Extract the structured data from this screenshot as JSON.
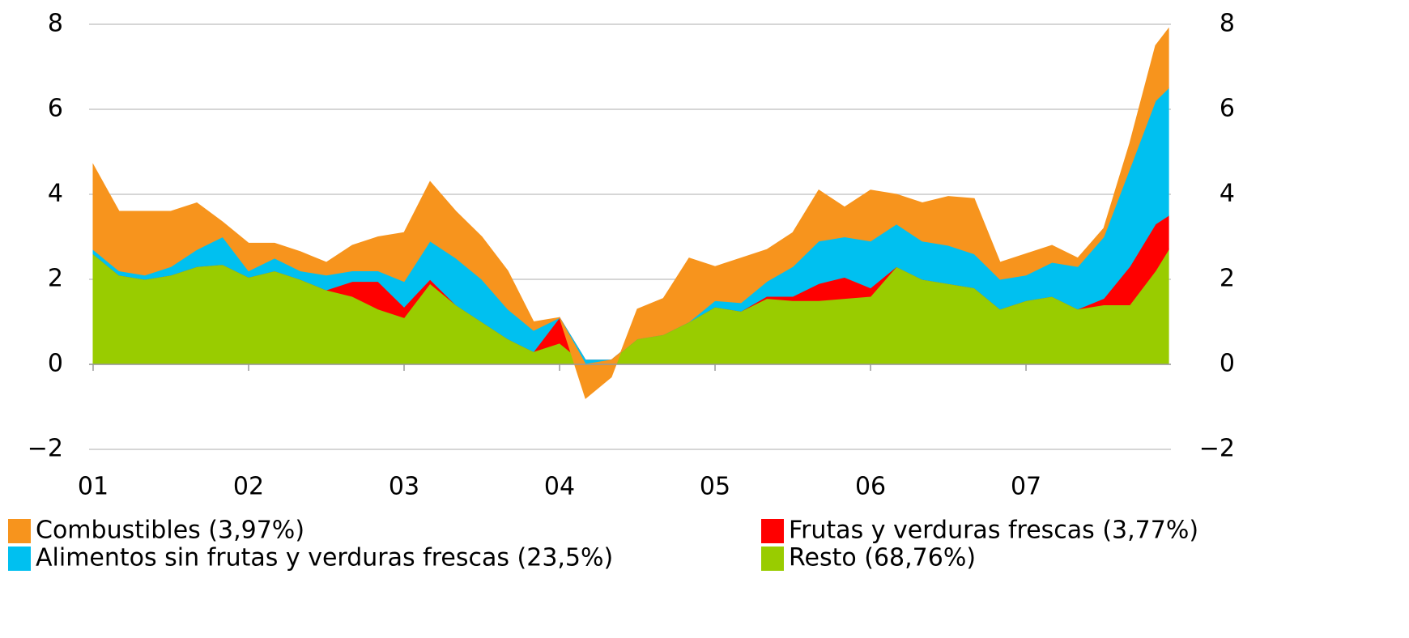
{
  "chart_data": {
    "type": "stacked_area",
    "x": [
      1,
      1.167,
      1.333,
      1.5,
      1.667,
      1.833,
      2,
      2.167,
      2.333,
      2.5,
      2.667,
      2.833,
      3,
      3.167,
      3.333,
      3.5,
      3.667,
      3.833,
      4,
      4.167,
      4.333,
      4.5,
      4.667,
      4.833,
      5,
      5.167,
      5.333,
      5.5,
      5.667,
      5.833,
      6,
      6.167,
      6.333,
      6.5,
      6.667,
      6.833,
      7,
      7.167,
      7.333,
      7.5,
      7.667,
      7.833,
      7.917
    ],
    "series": [
      {
        "name": "Resto (68,76%)",
        "color": "#99cc00",
        "values": [
          2.6,
          2.1,
          2.0,
          2.1,
          2.3,
          2.35,
          2.05,
          2.2,
          2.0,
          1.75,
          1.6,
          1.3,
          1.1,
          1.9,
          1.4,
          1.0,
          0.6,
          0.3,
          0.5,
          0,
          0.1,
          0.6,
          0.7,
          1.0,
          1.35,
          1.25,
          1.55,
          1.5,
          1.5,
          1.55,
          1.6,
          2.3,
          2.0,
          1.9,
          1.8,
          1.3,
          1.5,
          1.6,
          1.3,
          1.4,
          1.4,
          2.2,
          2.7
        ]
      },
      {
        "name": "Frutas y verduras frescas (3,77%)",
        "color": "#ff0000",
        "values": [
          0,
          0,
          0,
          0,
          0,
          0,
          0,
          0,
          0,
          0,
          0.35,
          0.65,
          0.25,
          0.1,
          0,
          0,
          0,
          0,
          0.6,
          0.1,
          0,
          0,
          0,
          0,
          0,
          0,
          0.05,
          0.1,
          0.4,
          0.5,
          0.2,
          0,
          0,
          0,
          0,
          0,
          0,
          0,
          0,
          0.15,
          0.9,
          1.1,
          0.8
        ]
      },
      {
        "name": "Alimentos sin frutas y verduras frescas (23,5%)",
        "color": "#00c0f0",
        "values": [
          0.1,
          0.1,
          0.1,
          0.2,
          0.4,
          0.65,
          0.15,
          0.3,
          0.2,
          0.35,
          0.25,
          0.25,
          0.6,
          0.9,
          1.1,
          1.0,
          0.7,
          0.5,
          0,
          -0.1,
          0,
          0,
          0,
          0,
          0.15,
          0.2,
          0.35,
          0.7,
          1.0,
          0.95,
          1.1,
          1.0,
          0.9,
          0.9,
          0.8,
          0.7,
          0.6,
          0.8,
          1.0,
          1.45,
          2.3,
          2.9,
          3.0
        ]
      },
      {
        "name": "Combustibles (3,97%)",
        "color": "#f7941d",
        "values": [
          2.0,
          1.4,
          1.5,
          1.3,
          1.1,
          0.35,
          0.65,
          0.35,
          0.45,
          0.3,
          0.6,
          0.8,
          1.15,
          1.4,
          1.1,
          1.0,
          0.9,
          0.2,
          0,
          -0.8,
          -0.4,
          0.7,
          0.85,
          1.5,
          0.8,
          1.05,
          0.75,
          0.8,
          1.2,
          0.7,
          1.2,
          0.7,
          0.9,
          1.15,
          1.3,
          0.4,
          0.5,
          0.4,
          0.2,
          0.2,
          0.6,
          1.3,
          1.4
        ]
      }
    ],
    "xlim": [
      0.974,
      7.932
    ],
    "xticks": [
      {
        "value": 1,
        "label": "01"
      },
      {
        "value": 2,
        "label": "02"
      },
      {
        "value": 3,
        "label": "03"
      },
      {
        "value": 4,
        "label": "04"
      },
      {
        "value": 5,
        "label": "05"
      },
      {
        "value": 6,
        "label": "06"
      },
      {
        "value": 7,
        "label": "07"
      }
    ],
    "ylim": [
      -2,
      8
    ],
    "yticks": [
      {
        "value": -2,
        "label": "−2"
      },
      0,
      2,
      4,
      6,
      8
    ],
    "y2lim": [
      -2,
      8
    ],
    "y2ticks": [
      {
        "value": -2,
        "label": "−2"
      },
      0,
      2,
      4,
      6,
      8
    ],
    "grid": true
  }
}
